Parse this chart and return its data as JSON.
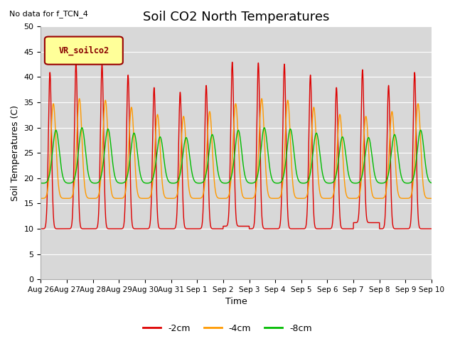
{
  "title": "Soil CO2 North Temperatures",
  "no_data_text": "No data for f_TCN_4",
  "legend_box_label": "VR_soilco2",
  "xlabel": "Time",
  "ylabel": "Soil Temperatures (C)",
  "ylim": [
    0,
    50
  ],
  "yticks": [
    0,
    5,
    10,
    15,
    20,
    25,
    30,
    35,
    40,
    45,
    50
  ],
  "xtick_labels": [
    "Aug 26",
    "Aug 27",
    "Aug 28",
    "Aug 29",
    "Aug 30",
    "Aug 31",
    "Sep 1",
    "Sep 2",
    "Sep 3",
    "Sep 4",
    "Sep 5",
    "Sep 6",
    "Sep 7",
    "Sep 8",
    "Sep 9",
    "Sep 10"
  ],
  "line_colors": {
    "-2cm": "#dd0000",
    "-4cm": "#ff9900",
    "-8cm": "#00bb00"
  },
  "bg_color": "#d8d8d8",
  "legend_box_bg": "#ffff99",
  "legend_box_edge": "#990000",
  "title_fontsize": 13,
  "axis_label_fontsize": 9
}
